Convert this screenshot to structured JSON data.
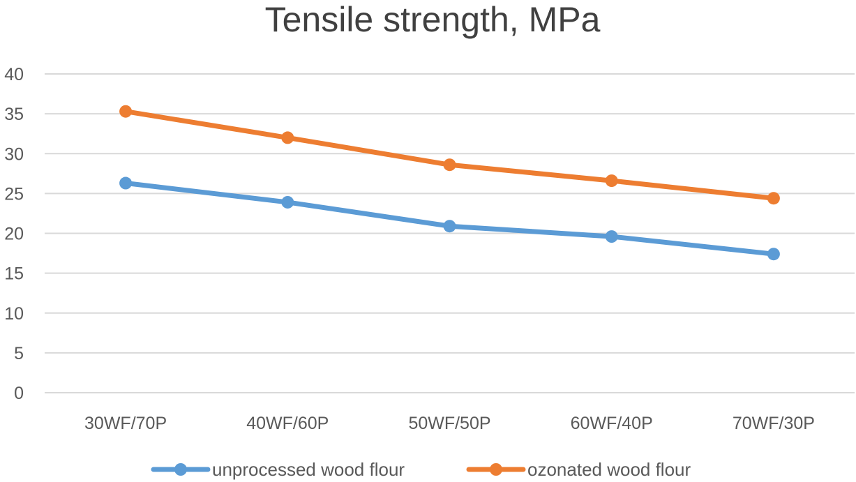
{
  "chart_data": {
    "type": "line",
    "title": "Tensile strength, MPa",
    "categories": [
      "30WF/70P",
      "40WF/60P",
      "50WF/50P",
      "60WF/40P",
      "70WF/30P"
    ],
    "series": [
      {
        "name": "unprocessed wood flour",
        "color": "#5b9bd5",
        "values": [
          26.3,
          23.9,
          20.9,
          19.6,
          17.4
        ]
      },
      {
        "name": "ozonated wood flour",
        "color": "#ed7d31",
        "values": [
          35.3,
          32.0,
          28.6,
          26.6,
          24.4
        ]
      }
    ],
    "xlabel": "",
    "ylabel": "",
    "ylim": [
      0,
      40
    ],
    "yticks": [
      "0",
      "5",
      "10",
      "15",
      "20",
      "25",
      "30",
      "35",
      "40"
    ],
    "grid": true,
    "legend": "bottom"
  }
}
